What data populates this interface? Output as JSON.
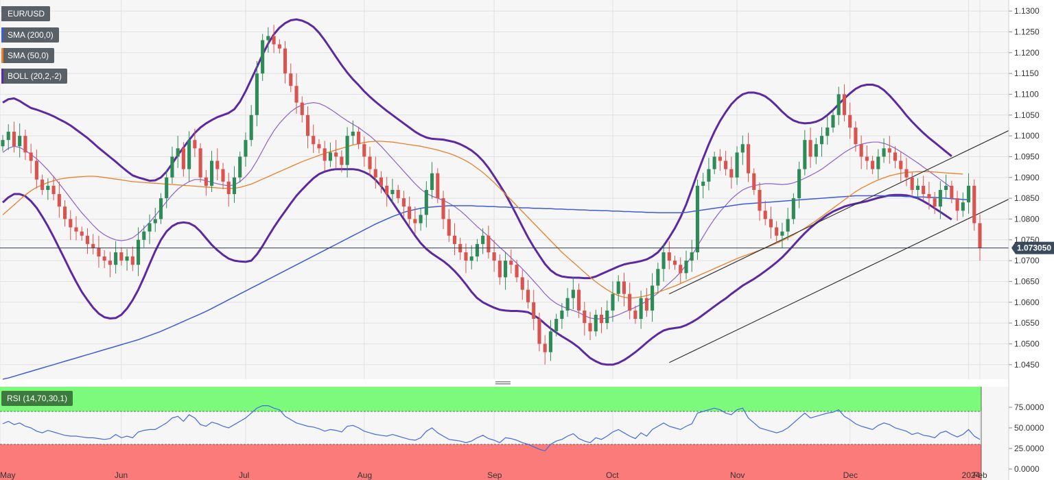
{
  "chart_data": {
    "type": "candlestick",
    "symbol": "EUR/USD",
    "indicators": {
      "sma200": {
        "label": "SMA (200,0)",
        "color": "#3b5bdb"
      },
      "sma50": {
        "label": "SMA (50,0)",
        "color": "#e8802a"
      },
      "boll": {
        "label": "BOLL (20,2,-2)",
        "color": "#5b2a9e"
      }
    },
    "price_axis": {
      "ylim": [
        1.0415,
        1.132
      ],
      "ticks": [
        "1.1300",
        "1.1250",
        "1.1200",
        "1.1150",
        "1.1100",
        "1.1050",
        "1.1000",
        "1.0950",
        "1.0900",
        "1.0850",
        "1.0800",
        "1.0750",
        "1.0700",
        "1.0650",
        "1.0600",
        "1.0550",
        "1.0500",
        "1.0450"
      ]
    },
    "last_price": {
      "value": 1.07305,
      "label": "1.073050"
    },
    "months": [
      "May",
      "Jun",
      "Jul",
      "Aug",
      "Sep",
      "Oct",
      "Nov",
      "Dec",
      "2024",
      "Feb"
    ],
    "colors": {
      "up": "#2e8b57",
      "down": "#d9534f",
      "last_price_bg": "#3a4a5c"
    },
    "closes": [
      1.099,
      1.101,
      1.0975,
      1.1,
      1.096,
      1.094,
      1.0895,
      1.087,
      1.088,
      1.086,
      1.083,
      1.08,
      1.078,
      1.077,
      1.076,
      1.074,
      1.073,
      1.071,
      1.07,
      1.069,
      1.072,
      1.07,
      1.071,
      1.069,
      1.075,
      1.077,
      1.079,
      1.08,
      1.085,
      1.09,
      1.095,
      1.097,
      1.092,
      1.099,
      1.097,
      1.09,
      1.088,
      1.094,
      1.092,
      1.089,
      1.086,
      1.09,
      1.095,
      1.099,
      1.105,
      1.115,
      1.123,
      1.124,
      1.122,
      1.121,
      1.115,
      1.112,
      1.108,
      1.105,
      1.1,
      1.098,
      1.097,
      1.094,
      1.096,
      1.095,
      1.093,
      1.1,
      1.101,
      1.098,
      1.095,
      1.092,
      1.09,
      1.088,
      1.086,
      1.087,
      1.085,
      1.083,
      1.08,
      1.079,
      1.081,
      1.087,
      1.091,
      1.085,
      1.08,
      1.076,
      1.074,
      1.072,
      1.07,
      1.071,
      1.074,
      1.076,
      1.072,
      1.07,
      1.066,
      1.07,
      1.069,
      1.066,
      1.063,
      1.06,
      1.056,
      1.05,
      1.048,
      1.053,
      1.056,
      1.058,
      1.061,
      1.063,
      1.058,
      1.055,
      1.053,
      1.057,
      1.055,
      1.058,
      1.062,
      1.065,
      1.062,
      1.058,
      1.056,
      1.061,
      1.058,
      1.064,
      1.068,
      1.072,
      1.07,
      1.069,
      1.067,
      1.07,
      1.072,
      1.088,
      1.089,
      1.092,
      1.095,
      1.094,
      1.092,
      1.09,
      1.096,
      1.098,
      1.091,
      1.087,
      1.082,
      1.08,
      1.078,
      1.076,
      1.077,
      1.08,
      1.085,
      1.092,
      1.099,
      1.095,
      1.098,
      1.1,
      1.102,
      1.105,
      1.11,
      1.105,
      1.102,
      1.098,
      1.095,
      1.094,
      1.092,
      1.095,
      1.097,
      1.096,
      1.094,
      1.092,
      1.09,
      1.087,
      1.088,
      1.086,
      1.085,
      1.083,
      1.087,
      1.088,
      1.085,
      1.082,
      1.084,
      1.088,
      1.079,
      1.073
    ],
    "sma200": [
      1.0415,
      1.0418,
      1.0422,
      1.0426,
      1.043,
      1.0434,
      1.0438,
      1.0442,
      1.0446,
      1.045,
      1.0454,
      1.0458,
      1.0462,
      1.0466,
      1.047,
      1.0474,
      1.0478,
      1.0482,
      1.0486,
      1.049,
      1.0494,
      1.0498,
      1.0502,
      1.0506,
      1.051,
      1.0515,
      1.052,
      1.0525,
      1.053,
      1.0536,
      1.0542,
      1.0548,
      1.0554,
      1.056,
      1.0566,
      1.0572,
      1.0578,
      1.0585,
      1.0592,
      1.0599,
      1.0606,
      1.0613,
      1.062,
      1.0627,
      1.0634,
      1.0641,
      1.0648,
      1.0655,
      1.0662,
      1.0669,
      1.0676,
      1.0683,
      1.069,
      1.0697,
      1.0704,
      1.0711,
      1.0718,
      1.0725,
      1.0732,
      1.0739,
      1.0746,
      1.0753,
      1.076,
      1.0767,
      1.0774,
      1.0781,
      1.0788,
      1.0794,
      1.08,
      1.0806,
      1.0811,
      1.0816,
      1.082,
      1.0823,
      1.0826,
      1.0828,
      1.0829,
      1.083,
      1.0831,
      1.0832,
      1.0832,
      1.0832,
      1.0832,
      1.0832,
      1.0831,
      1.0831,
      1.083,
      1.083,
      1.0829,
      1.0829,
      1.0828,
      1.0828,
      1.0827,
      1.0827,
      1.0826,
      1.0826,
      1.0825,
      1.0825,
      1.0824,
      1.0824,
      1.0823,
      1.0823,
      1.0822,
      1.0822,
      1.0821,
      1.0821,
      1.082,
      1.082,
      1.0819,
      1.0819,
      1.0818,
      1.0818,
      1.0817,
      1.0817,
      1.0816,
      1.0816,
      1.0815,
      1.0815,
      1.0815,
      1.0815,
      1.0815,
      1.0816,
      1.0818,
      1.082,
      1.0822,
      1.0824,
      1.0826,
      1.0828,
      1.083,
      1.0832,
      1.0834,
      1.0836,
      1.0837,
      1.0838,
      1.0839,
      1.084,
      1.0841,
      1.0842,
      1.0843,
      1.0844,
      1.0845,
      1.0846,
      1.0847,
      1.0848,
      1.0849,
      1.085,
      1.0851,
      1.0852,
      1.0853,
      1.0854,
      1.0855,
      1.0856,
      1.0856,
      1.0856,
      1.0856,
      1.0856,
      1.0856,
      1.0855,
      1.0855,
      1.0855,
      1.0854,
      1.0854,
      1.0853,
      1.0853,
      1.0852,
      1.0852,
      1.0851,
      1.085,
      1.0849,
      1.0848,
      1.0847,
      1.0846
    ],
    "sma50": [
      1.081,
      1.0822,
      1.0834,
      1.0846,
      1.0858,
      1.0868,
      1.0876,
      1.0882,
      1.0888,
      1.0892,
      1.0896,
      1.0898,
      1.09,
      1.0901,
      1.0902,
      1.0903,
      1.0903,
      1.0902,
      1.09,
      1.0898,
      1.0896,
      1.0894,
      1.0892,
      1.089,
      1.0889,
      1.0888,
      1.0887,
      1.0886,
      1.0885,
      1.0884,
      1.0883,
      1.0882,
      1.0881,
      1.088,
      1.0879,
      1.0878,
      1.0877,
      1.0876,
      1.0875,
      1.0874,
      1.0874,
      1.0874,
      1.0876,
      1.088,
      1.0884,
      1.089,
      1.0896,
      1.0902,
      1.0908,
      1.0914,
      1.092,
      1.0926,
      1.0932,
      1.0938,
      1.0943,
      1.0948,
      1.0953,
      1.0958,
      1.0962,
      1.0966,
      1.097,
      1.0974,
      1.0978,
      1.0981,
      1.0984,
      1.0986,
      1.0987,
      1.0987,
      1.0986,
      1.0985,
      1.0983,
      1.0981,
      1.0979,
      1.0977,
      1.0975,
      1.0972,
      1.0969,
      1.0966,
      1.0962,
      1.0958,
      1.0953,
      1.0947,
      1.094,
      1.0932,
      1.0922,
      1.0912,
      1.09,
      1.0888,
      1.0874,
      1.086,
      1.0846,
      1.0832,
      1.0818,
      1.0804,
      1.079,
      1.0776,
      1.0762,
      1.0748,
      1.0734,
      1.072,
      1.0708,
      1.0696,
      1.0684,
      1.0672,
      1.066,
      1.0649,
      1.0639,
      1.063,
      1.0622,
      1.0616,
      1.0612,
      1.061,
      1.0611,
      1.0613,
      1.0616,
      1.062,
      1.0624,
      1.0629,
      1.0634,
      1.0639,
      1.0645,
      1.0651,
      1.0657,
      1.0663,
      1.0669,
      1.0675,
      1.0681,
      1.0687,
      1.0693,
      1.0699,
      1.0705,
      1.071,
      1.0715,
      1.072,
      1.0725,
      1.073,
      1.0736,
      1.0742,
      1.0748,
      1.0755,
      1.0762,
      1.077,
      1.0778,
      1.0787,
      1.0796,
      1.0806,
      1.0816,
      1.0826,
      1.0836,
      1.0846,
      1.0856,
      1.0866,
      1.0874,
      1.0881,
      1.0888,
      1.0894,
      1.0899,
      1.0904,
      1.0907,
      1.091,
      1.0912,
      1.0913,
      1.0914,
      1.0914,
      1.0914,
      1.0913,
      1.0912,
      1.0911,
      1.091,
      1.0909,
      1.0908
    ],
    "boll_mid": [
      1.096,
      1.097,
      1.0975,
      1.0972,
      1.0965,
      1.0955,
      1.0945,
      1.0932,
      1.0918,
      1.0902,
      1.0885,
      1.0868,
      1.085,
      1.0832,
      1.0815,
      1.08,
      1.0785,
      1.0772,
      1.0762,
      1.0755,
      1.075,
      1.0748,
      1.075,
      1.0755,
      1.0765,
      1.0778,
      1.0792,
      1.0808,
      1.0825,
      1.0842,
      1.0858,
      1.0872,
      1.0882,
      1.089,
      1.0895,
      1.0895,
      1.0892,
      1.0888,
      1.0885,
      1.0882,
      1.088,
      1.0882,
      1.089,
      1.0902,
      1.0918,
      1.094,
      1.0965,
      1.099,
      1.1012,
      1.103,
      1.1045,
      1.1058,
      1.1068,
      1.1074,
      1.1078,
      1.108,
      1.1078,
      1.1072,
      1.1064,
      1.1055,
      1.1045,
      1.1036,
      1.1028,
      1.102,
      1.101,
      1.1,
      1.0988,
      1.0975,
      1.096,
      1.0945,
      1.093,
      1.0915,
      1.09,
      1.0885,
      1.0872,
      1.0862,
      1.0855,
      1.085,
      1.0845,
      1.0838,
      1.083,
      1.082,
      1.0808,
      1.0795,
      1.0782,
      1.077,
      1.0758,
      1.0745,
      1.0732,
      1.072,
      1.0707,
      1.0694,
      1.068,
      1.0666,
      1.0651,
      1.0636,
      1.062,
      1.0607,
      1.0597,
      1.059,
      1.0585,
      1.058,
      1.0575,
      1.0568,
      1.0562,
      1.056,
      1.056,
      1.0562,
      1.0565,
      1.057,
      1.0576,
      1.0582,
      1.0588,
      1.0595,
      1.0603,
      1.0612,
      1.0622,
      1.0634,
      1.0646,
      1.0658,
      1.0672,
      1.069,
      1.0712,
      1.0735,
      1.0758,
      1.078,
      1.08,
      1.0818,
      1.0833,
      1.0848,
      1.086,
      1.087,
      1.0876,
      1.088,
      1.0883,
      1.0885,
      1.0885,
      1.0884,
      1.0883,
      1.0884,
      1.0887,
      1.0892,
      1.0898,
      1.0905,
      1.0912,
      1.092,
      1.093,
      1.094,
      1.095,
      1.096,
      1.0968,
      1.0975,
      1.098,
      1.0983,
      1.0985,
      1.0985,
      1.0982,
      1.0977,
      1.097,
      1.0962,
      1.0953,
      1.0944,
      1.0935,
      1.0925,
      1.0915,
      1.0905,
      1.0895,
      1.0885,
      1.0875
    ],
    "boll_width": [
      0.012,
      0.0118,
      0.0115,
      0.0112,
      0.011,
      0.0112,
      0.0118,
      0.0126,
      0.0135,
      0.0145,
      0.0155,
      0.0165,
      0.0175,
      0.0183,
      0.019,
      0.0195,
      0.0198,
      0.0199,
      0.0198,
      0.0194,
      0.0188,
      0.0178,
      0.0165,
      0.015,
      0.0135,
      0.0118,
      0.01,
      0.0085,
      0.0075,
      0.0072,
      0.0075,
      0.0082,
      0.009,
      0.01,
      0.0112,
      0.0125,
      0.0138,
      0.015,
      0.016,
      0.0168,
      0.0175,
      0.0182,
      0.0192,
      0.0205,
      0.0218,
      0.0225,
      0.023,
      0.0232,
      0.0232,
      0.023,
      0.0226,
      0.022,
      0.0212,
      0.0203,
      0.0193,
      0.0182,
      0.017,
      0.0158,
      0.0146,
      0.0135,
      0.0125,
      0.0116,
      0.0108,
      0.0102,
      0.0097,
      0.0094,
      0.0094,
      0.0096,
      0.01,
      0.0105,
      0.011,
      0.0115,
      0.012,
      0.0125,
      0.013,
      0.0134,
      0.0138,
      0.0142,
      0.0146,
      0.015,
      0.0155,
      0.016,
      0.0165,
      0.017,
      0.0172,
      0.017,
      0.0165,
      0.0158,
      0.015,
      0.014,
      0.0128,
      0.0115,
      0.0102,
      0.009,
      0.0082,
      0.0076,
      0.0072,
      0.007,
      0.007,
      0.0072,
      0.0075,
      0.0079,
      0.0084,
      0.009,
      0.0096,
      0.0102,
      0.0108,
      0.0112,
      0.0115,
      0.0116,
      0.0115,
      0.0112,
      0.0108,
      0.0104,
      0.01,
      0.0098,
      0.0098,
      0.0102,
      0.011,
      0.012,
      0.0132,
      0.0145,
      0.016,
      0.0175,
      0.0188,
      0.02,
      0.021,
      0.0218,
      0.0224,
      0.0228,
      0.023,
      0.023,
      0.0228,
      0.0224,
      0.0218,
      0.021,
      0.02,
      0.0188,
      0.0175,
      0.0162,
      0.015,
      0.014,
      0.0132,
      0.0126,
      0.0122,
      0.012,
      0.012,
      0.0122,
      0.0126,
      0.013,
      0.0134,
      0.0138,
      0.014,
      0.014,
      0.0138,
      0.0134,
      0.0128,
      0.012,
      0.0112,
      0.0104,
      0.0096,
      0.009,
      0.0085,
      0.0082,
      0.008,
      0.0079,
      0.0078,
      0.0077,
      0.0076,
      0.0075,
      0.0074,
      0.0073
    ],
    "trend_lines": [
      {
        "x": [
          118,
          193
        ],
        "y": [
          1.062,
          1.111
        ]
      },
      {
        "x": [
          118,
          193
        ],
        "y": [
          1.0455,
          1.0945
        ]
      }
    ],
    "rsi": {
      "label": "RSI (14,70,30,1)",
      "ylim": [
        0,
        100
      ],
      "overbought": 70,
      "oversold": 30,
      "ticks": [
        "75.0000",
        "50.0000",
        "25.0000",
        "0.0000"
      ],
      "color": "#4169e1",
      "overbought_color": "#7cfa7c",
      "oversold_color": "#fb7b7b",
      "values": [
        55,
        58,
        54,
        56,
        52,
        50,
        46,
        44,
        47,
        45,
        43,
        41,
        40,
        40,
        39,
        38,
        38,
        37,
        36,
        37,
        42,
        38,
        40,
        38,
        45,
        47,
        48,
        48,
        52,
        56,
        62,
        64,
        58,
        66,
        62,
        54,
        52,
        57,
        55,
        52,
        50,
        54,
        58,
        62,
        68,
        74,
        77,
        77,
        74,
        72,
        64,
        60,
        56,
        54,
        52,
        51,
        49,
        46,
        48,
        47,
        45,
        52,
        53,
        50,
        46,
        44,
        42,
        41,
        40,
        42,
        40,
        38,
        36,
        35,
        38,
        46,
        50,
        44,
        40,
        36,
        35,
        34,
        32,
        34,
        38,
        41,
        37,
        35,
        32,
        38,
        37,
        35,
        32,
        30,
        27,
        24,
        22,
        30,
        34,
        36,
        40,
        43,
        37,
        34,
        32,
        38,
        36,
        40,
        45,
        48,
        44,
        40,
        37,
        44,
        40,
        48,
        52,
        56,
        52,
        50,
        48,
        52,
        55,
        68,
        70,
        72,
        74,
        72,
        68,
        66,
        72,
        74,
        62,
        56,
        50,
        48,
        46,
        44,
        46,
        50,
        56,
        62,
        68,
        62,
        64,
        66,
        68,
        69,
        72,
        64,
        60,
        55,
        52,
        50,
        48,
        53,
        56,
        54,
        50,
        48,
        46,
        42,
        44,
        41,
        40,
        38,
        44,
        46,
        42,
        39,
        42,
        48,
        40,
        36
      ]
    }
  }
}
